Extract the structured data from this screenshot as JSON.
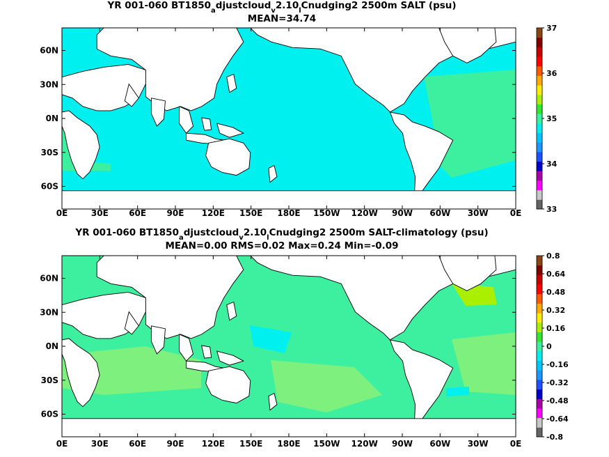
{
  "panels": [
    {
      "id": "top",
      "title_main": "YR 001-060 BT1850",
      "title_sub1": "a",
      "title_mid": "djustcloud",
      "title_sub2": "v",
      "title_mid2": "2.10",
      "title_sub3": "l",
      "title_end": "Cnudging2 2500m SALT (psu)",
      "stats": "MEAN=34.74",
      "colorbar": {
        "colors": [
          "#646464",
          "#c8c8c8",
          "#ff00ff",
          "#aa00aa",
          "#0000cd",
          "#1e50ff",
          "#1e96ff",
          "#00c8ff",
          "#00f0f0",
          "#3cf0a0",
          "#32e632",
          "#aaee00",
          "#ffee00",
          "#ffaa00",
          "#ff5a00",
          "#ff0000",
          "#c80000",
          "#820000",
          "#8b4513"
        ],
        "tick_labels": [
          "33",
          "34",
          "35",
          "36",
          "37"
        ]
      }
    },
    {
      "id": "bottom",
      "title_main": "YR 001-060 BT1850",
      "title_sub1": "a",
      "title_mid": "djustcloud",
      "title_sub2": "v",
      "title_mid2": "2.10",
      "title_sub3": "l",
      "title_end": "Cnudging2 2500m SALT-climatology (psu)",
      "stats": "MEAN=0.00   RMS=0.02   Max=0.24   Min=-0.09",
      "colorbar": {
        "colors": [
          "#646464",
          "#c8c8c8",
          "#ff00ff",
          "#aa00aa",
          "#0000cd",
          "#1e50ff",
          "#1e96ff",
          "#00c8ff",
          "#00f0f0",
          "#3cf0a0",
          "#32e632",
          "#aaee00",
          "#ffee00",
          "#ffaa00",
          "#ff5a00",
          "#ff0000",
          "#c80000",
          "#820000",
          "#8b4513"
        ],
        "tick_labels": [
          "0.8",
          "0.64",
          "0.48",
          "0.32",
          "0.16",
          "0",
          "-0.16",
          "-0.32",
          "-0.48",
          "-0.64",
          "-0.8"
        ]
      }
    }
  ],
  "lon_labels": [
    "0E",
    "30E",
    "60E",
    "90E",
    "120E",
    "150E",
    "180E",
    "150W",
    "120W",
    "90W",
    "60W",
    "30W",
    "0E"
  ],
  "lat_labels": [
    "60N",
    "30N",
    "0N",
    "30S",
    "60S"
  ],
  "colors": {
    "top_ocean": "#00f0f0",
    "top_atlantic": "#3cf0a0",
    "bottom_ocean": "#3cf0a0",
    "bottom_light": "#7ef07e",
    "bottom_cyan": "#00f0f0",
    "bottom_yellowgreen": "#aaee00",
    "land": "#ffffff",
    "coast": "#000000"
  }
}
